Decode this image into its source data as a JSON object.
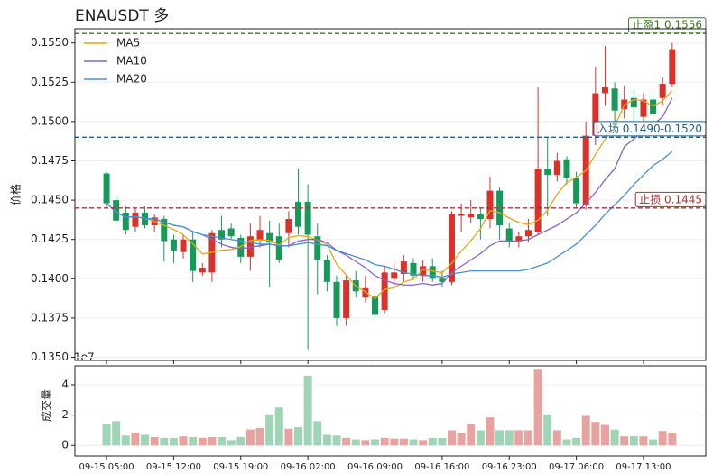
{
  "chart_data": {
    "type": "candlestick",
    "title": "ENAUSDT  多",
    "ylabel": "价格",
    "x": [
      0,
      1,
      2,
      3,
      4,
      5,
      6,
      7,
      8,
      9,
      10,
      11,
      12,
      13,
      14,
      15,
      16,
      17,
      18,
      19,
      20,
      21,
      22,
      23,
      24,
      25,
      26,
      27,
      28,
      29,
      30,
      31,
      32,
      33,
      34,
      35,
      36,
      37,
      38,
      39,
      40,
      41,
      42,
      43,
      44,
      45,
      46,
      47,
      48,
      49,
      50,
      51,
      52,
      53,
      54,
      55,
      56,
      57,
      58,
      59
    ],
    "xlim": [
      -3.3,
      62.5
    ],
    "xticks": [
      {
        "value": 0,
        "label": "09-15 05:00"
      },
      {
        "value": 7,
        "label": "09-15 12:00"
      },
      {
        "value": 14,
        "label": "09-15 19:00"
      },
      {
        "value": 21,
        "label": "09-16 02:00"
      },
      {
        "value": 28,
        "label": "09-16 09:00"
      },
      {
        "value": 35,
        "label": "09-16 16:00"
      },
      {
        "value": 42,
        "label": "09-16 23:00"
      },
      {
        "value": 49,
        "label": "09-17 06:00"
      },
      {
        "value": 56,
        "label": "09-17 13:00"
      }
    ],
    "ylim": [
      0.1348,
      0.1559
    ],
    "yticks": [
      {
        "value": 0.135,
        "label": "0.1350"
      },
      {
        "value": 0.1375,
        "label": "0.1375"
      },
      {
        "value": 0.14,
        "label": "0.1400"
      },
      {
        "value": 0.1425,
        "label": "0.1425"
      },
      {
        "value": 0.145,
        "label": "0.1450"
      },
      {
        "value": 0.1475,
        "label": "0.1475"
      },
      {
        "value": 0.15,
        "label": "0.1500"
      },
      {
        "value": 0.1525,
        "label": "0.1525"
      },
      {
        "value": 0.155,
        "label": "0.1550"
      }
    ],
    "grid": true,
    "up_color": "#d9322b",
    "down_color": "#169a5a",
    "candles": {
      "open": [
        0.1467,
        0.145,
        0.1442,
        0.1433,
        0.1442,
        0.1434,
        0.1438,
        0.1425,
        0.1417,
        0.1425,
        0.1404,
        0.1404,
        0.1431,
        0.1432,
        0.1426,
        0.1414,
        0.1425,
        0.1429,
        0.1427,
        0.1429,
        0.1449,
        0.1449,
        0.1427,
        0.1412,
        0.1398,
        0.1375,
        0.1399,
        0.1388,
        0.1389,
        0.138,
        0.14,
        0.1403,
        0.141,
        0.1402,
        0.1408,
        0.14,
        0.1398,
        0.144,
        0.1439,
        0.1441,
        0.1438,
        0.1456,
        0.1432,
        0.1424,
        0.1427,
        0.143,
        0.147,
        0.1466,
        0.1476,
        0.1464,
        0.1447,
        0.1491,
        0.1518,
        0.1521,
        0.1508,
        0.1515,
        0.1503,
        0.1514,
        0.1515,
        0.1524
      ],
      "high": [
        0.1468,
        0.1453,
        0.1446,
        0.1445,
        0.1446,
        0.1441,
        0.144,
        0.1428,
        0.1428,
        0.143,
        0.141,
        0.1431,
        0.144,
        0.1435,
        0.1428,
        0.1435,
        0.144,
        0.1437,
        0.1435,
        0.1443,
        0.147,
        0.146,
        0.1435,
        0.1415,
        0.1402,
        0.1402,
        0.1405,
        0.1402,
        0.1392,
        0.1408,
        0.141,
        0.1415,
        0.1413,
        0.1412,
        0.1413,
        0.1405,
        0.1443,
        0.1448,
        0.145,
        0.1445,
        0.1465,
        0.1458,
        0.1436,
        0.143,
        0.1438,
        0.1522,
        0.149,
        0.148,
        0.1478,
        0.1468,
        0.15,
        0.1535,
        0.1548,
        0.1525,
        0.1523,
        0.152,
        0.1518,
        0.1518,
        0.1528,
        0.155
      ],
      "low": [
        0.1445,
        0.1435,
        0.1428,
        0.143,
        0.1432,
        0.143,
        0.1411,
        0.141,
        0.1413,
        0.1398,
        0.1402,
        0.1398,
        0.142,
        0.1425,
        0.141,
        0.1405,
        0.142,
        0.1395,
        0.141,
        0.142,
        0.1428,
        0.1355,
        0.139,
        0.1392,
        0.137,
        0.137,
        0.1388,
        0.1385,
        0.1375,
        0.1378,
        0.1395,
        0.1398,
        0.14,
        0.1398,
        0.1398,
        0.1395,
        0.1396,
        0.143,
        0.1435,
        0.1425,
        0.1432,
        0.1425,
        0.142,
        0.142,
        0.1423,
        0.1428,
        0.144,
        0.1462,
        0.146,
        0.1445,
        0.1444,
        0.1485,
        0.151,
        0.15,
        0.1502,
        0.1498,
        0.15,
        0.1502,
        0.151,
        0.1522
      ],
      "close": [
        0.1448,
        0.1437,
        0.1431,
        0.1442,
        0.1434,
        0.1439,
        0.1424,
        0.1418,
        0.1425,
        0.1405,
        0.1407,
        0.1429,
        0.1425,
        0.1427,
        0.1414,
        0.1427,
        0.1431,
        0.1423,
        0.1412,
        0.1438,
        0.1433,
        0.1428,
        0.1412,
        0.1398,
        0.1375,
        0.1399,
        0.1392,
        0.1394,
        0.1377,
        0.1404,
        0.1404,
        0.1411,
        0.1402,
        0.1408,
        0.14,
        0.1398,
        0.1441,
        0.1441,
        0.1441,
        0.1438,
        0.1456,
        0.1434,
        0.1424,
        0.1427,
        0.1431,
        0.147,
        0.1466,
        0.1475,
        0.1464,
        0.1448,
        0.1491,
        0.1518,
        0.1522,
        0.1507,
        0.1514,
        0.1509,
        0.1514,
        0.1505,
        0.1524,
        0.1546
      ]
    },
    "legend": "upper left",
    "series": [
      {
        "name": "MA5",
        "color": "#e6a817",
        "values": [
          0.1448,
          0.14425,
          0.1439,
          0.14395,
          0.14384,
          0.14366,
          0.1434,
          0.14314,
          0.1428,
          0.14222,
          0.14158,
          0.14168,
          0.14182,
          0.14186,
          0.14204,
          0.14244,
          0.14248,
          0.14244,
          0.14214,
          0.14262,
          0.14274,
          0.14268,
          0.14246,
          0.14218,
          0.14092,
          0.14024,
          0.13952,
          0.13916,
          0.13874,
          0.13932,
          0.13942,
          0.1398,
          0.13996,
          0.14058,
          0.1405,
          0.14038,
          0.14098,
          0.14176,
          0.14242,
          0.14318,
          0.14434,
          0.1442,
          0.14386,
          0.14358,
          0.14344,
          0.14372,
          0.14436,
          0.14538,
          0.14612,
          0.14646,
          0.14688,
          0.14792,
          0.14886,
          0.14972,
          0.15104,
          0.1514,
          0.15132,
          0.15098,
          0.15132,
          0.15196
        ]
      },
      {
        "name": "MA10",
        "color": "#8a63c9",
        "values": [
          0.1448,
          0.14425,
          0.1439,
          0.14395,
          0.14384,
          0.1438,
          0.1436,
          0.1434,
          0.1433,
          0.143,
          0.1428,
          0.1425,
          0.1422,
          0.142,
          0.1419,
          0.142,
          0.1421,
          0.1422,
          0.1421,
          0.1421,
          0.1424,
          0.1425,
          0.1425,
          0.1423,
          0.1418,
          0.1415,
          0.1411,
          0.1407,
          0.1402,
          0.1399,
          0.1397,
          0.1396,
          0.1396,
          0.1397,
          0.1396,
          0.1397,
          0.1404,
          0.1408,
          0.1412,
          0.1416,
          0.1421,
          0.1424,
          0.1424,
          0.1424,
          0.1425,
          0.1428,
          0.1431,
          0.1434,
          0.1438,
          0.1442,
          0.1448,
          0.1455,
          0.1463,
          0.147,
          0.1484,
          0.1489,
          0.1494,
          0.1498,
          0.1503,
          0.1515
        ]
      },
      {
        "name": "MA20",
        "color": "#4a8fd0",
        "values": [
          0.1448,
          0.14425,
          0.1439,
          0.14395,
          0.14384,
          0.1438,
          0.1436,
          0.1434,
          0.1433,
          0.143,
          0.1428,
          0.1427,
          0.1426,
          0.1425,
          0.1424,
          0.1423,
          0.1422,
          0.1422,
          0.1421,
          0.1421,
          0.1422,
          0.1423,
          0.1422,
          0.1421,
          0.1418,
          0.1416,
          0.1414,
          0.1412,
          0.1409,
          0.1408,
          0.1406,
          0.1404,
          0.1403,
          0.1402,
          0.1402,
          0.1401,
          0.1403,
          0.1404,
          0.1405,
          0.1405,
          0.1405,
          0.1405,
          0.1405,
          0.1405,
          0.1406,
          0.1408,
          0.141,
          0.1414,
          0.1418,
          0.1422,
          0.1428,
          0.1434,
          0.1441,
          0.1447,
          0.1453,
          0.146,
          0.1466,
          0.1472,
          0.1476,
          0.1481
        ]
      }
    ],
    "hlines": [
      {
        "value": 0.1556,
        "label": "止盈1 0.1556",
        "color": "#3d7a1e"
      },
      {
        "value": 0.149,
        "label": "入场 0.1490-0.1520",
        "color": "#1f5f8b"
      },
      {
        "value": 0.1445,
        "label": "止损 0.1445",
        "color": "#b03030"
      }
    ],
    "volume": {
      "ylabel": "成交量",
      "offset_label": "1e7",
      "ylim": [
        -0.7,
        5.25
      ],
      "yticks": [
        0,
        2,
        4
      ],
      "up_color": "#e8a3a0",
      "down_color": "#9fd4b6",
      "values": [
        1.4,
        1.6,
        0.65,
        0.85,
        0.7,
        0.55,
        0.5,
        0.5,
        0.6,
        0.55,
        0.5,
        0.55,
        0.55,
        0.35,
        0.55,
        1.05,
        1.15,
        2.05,
        2.5,
        1.1,
        1.2,
        4.6,
        1.6,
        0.7,
        0.65,
        0.5,
        0.4,
        0.35,
        0.4,
        0.5,
        0.45,
        0.45,
        0.4,
        0.35,
        0.5,
        0.5,
        1.0,
        0.8,
        1.4,
        1.0,
        1.85,
        1.0,
        1.0,
        1.0,
        1.0,
        5.0,
        2.05,
        1.0,
        0.4,
        0.5,
        1.95,
        1.55,
        1.35,
        1.05,
        0.6,
        0.6,
        0.6,
        0.4,
        0.95,
        0.8
      ]
    }
  }
}
